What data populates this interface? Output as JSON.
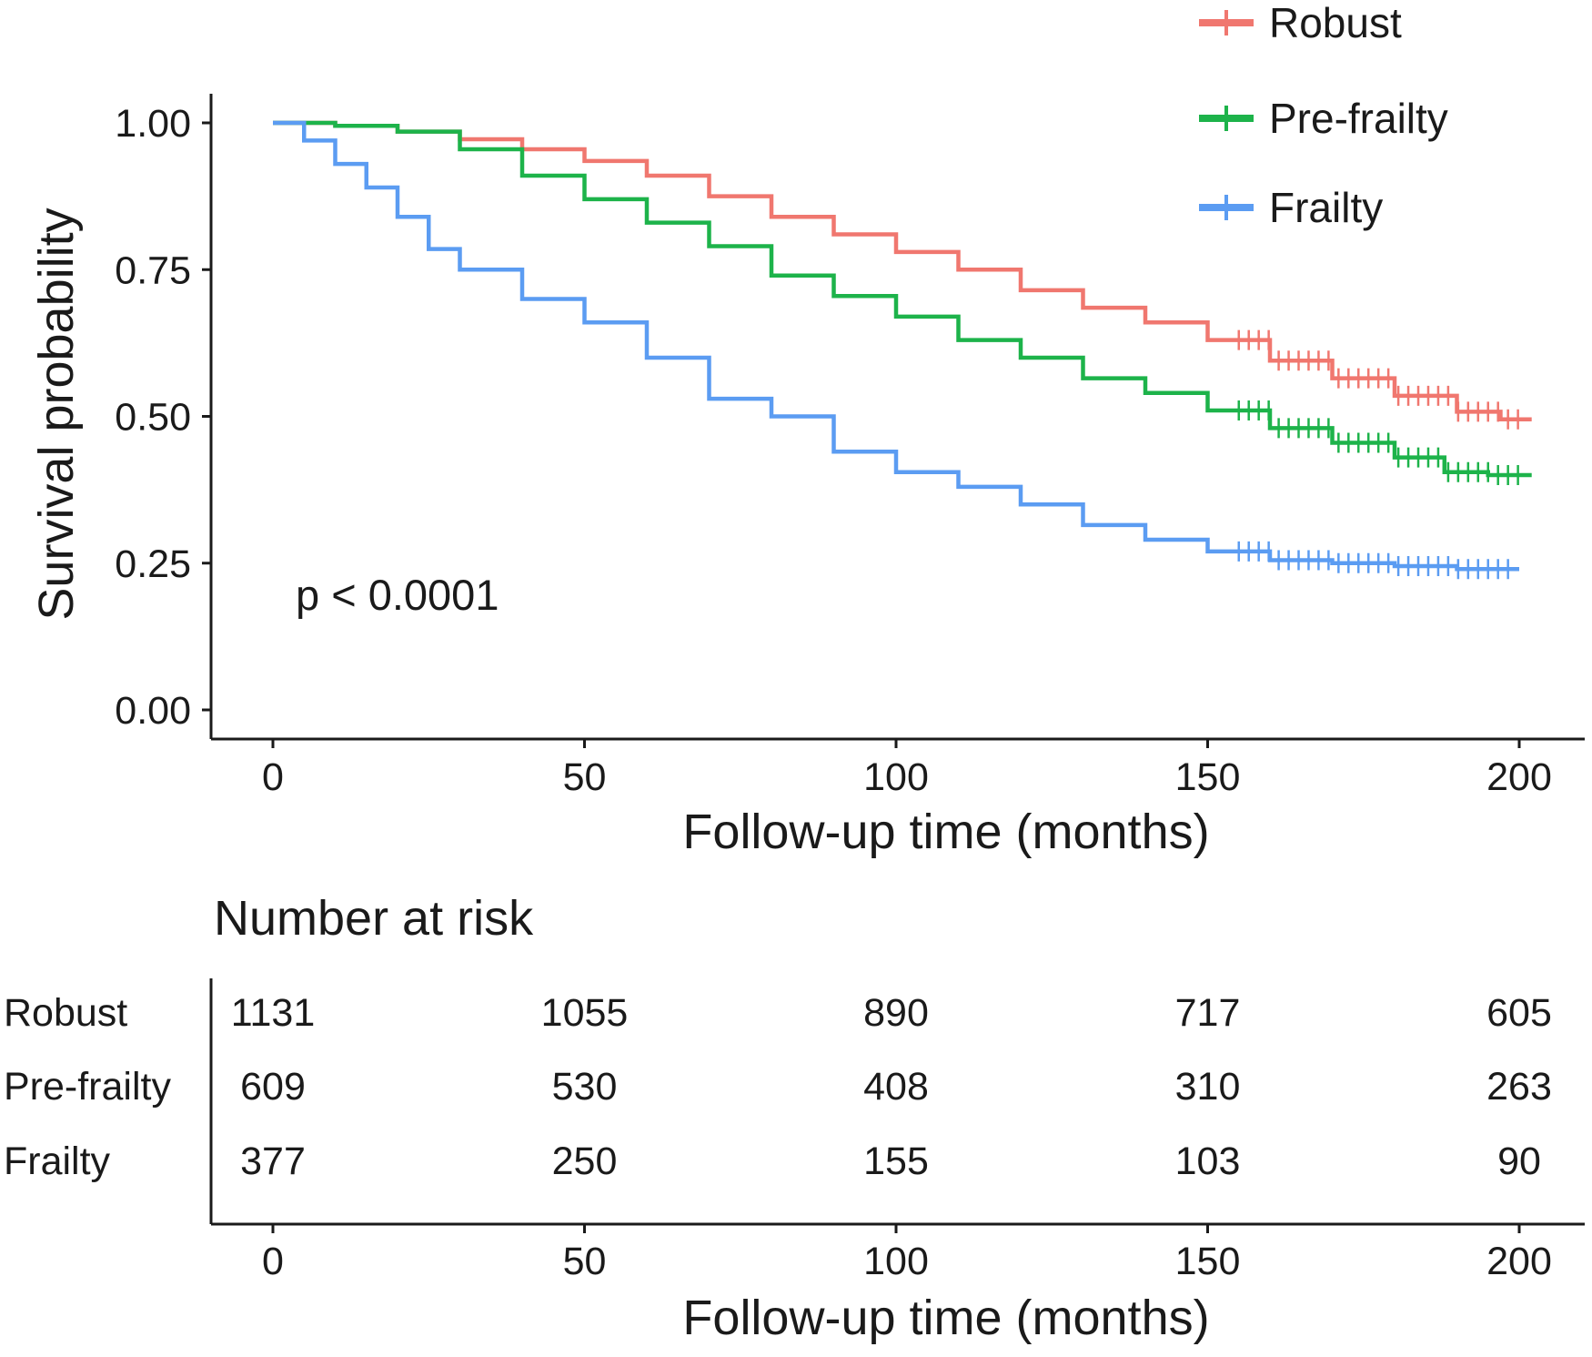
{
  "chart_data": {
    "type": "line",
    "subtype": "kaplan-meier",
    "title": "",
    "xlabel": "Follow-up time (months)",
    "ylabel": "Survival probability",
    "xlim": [
      0,
      200
    ],
    "ylim": [
      0,
      1
    ],
    "x_ticks": [
      0,
      50,
      100,
      150,
      200
    ],
    "y_ticks": [
      0.0,
      0.25,
      0.5,
      0.75,
      1.0
    ],
    "x_tick_labels": [
      "0",
      "50",
      "100",
      "150",
      "200"
    ],
    "y_tick_labels": [
      "0.00",
      "0.25",
      "0.50",
      "0.75",
      "1.00"
    ],
    "grid": false,
    "legend_position": "top-right",
    "annotation": "p < 0.0001",
    "series": [
      {
        "name": "Robust",
        "color": "#f0776f",
        "censor_from": 155,
        "points": [
          [
            0,
            1.0
          ],
          [
            10,
            0.995
          ],
          [
            20,
            0.985
          ],
          [
            30,
            0.972
          ],
          [
            40,
            0.955
          ],
          [
            50,
            0.935
          ],
          [
            60,
            0.91
          ],
          [
            70,
            0.875
          ],
          [
            80,
            0.84
          ],
          [
            90,
            0.81
          ],
          [
            100,
            0.78
          ],
          [
            110,
            0.75
          ],
          [
            120,
            0.715
          ],
          [
            130,
            0.685
          ],
          [
            140,
            0.66
          ],
          [
            150,
            0.63
          ],
          [
            160,
            0.595
          ],
          [
            170,
            0.565
          ],
          [
            180,
            0.535
          ],
          [
            190,
            0.508
          ],
          [
            197,
            0.495
          ],
          [
            202,
            0.495
          ]
        ]
      },
      {
        "name": "Pre-frailty",
        "color": "#1db34a",
        "censor_from": 155,
        "points": [
          [
            0,
            1.0
          ],
          [
            10,
            0.995
          ],
          [
            20,
            0.985
          ],
          [
            30,
            0.955
          ],
          [
            40,
            0.91
          ],
          [
            50,
            0.87
          ],
          [
            60,
            0.83
          ],
          [
            70,
            0.79
          ],
          [
            80,
            0.74
          ],
          [
            90,
            0.705
          ],
          [
            100,
            0.67
          ],
          [
            110,
            0.63
          ],
          [
            120,
            0.6
          ],
          [
            130,
            0.565
          ],
          [
            140,
            0.54
          ],
          [
            150,
            0.51
          ],
          [
            160,
            0.48
          ],
          [
            170,
            0.455
          ],
          [
            180,
            0.43
          ],
          [
            188,
            0.405
          ],
          [
            195,
            0.4
          ],
          [
            202,
            0.4
          ]
        ]
      },
      {
        "name": "Frailty",
        "color": "#5b9cf2",
        "censor_from": 155,
        "points": [
          [
            0,
            1.0
          ],
          [
            5,
            0.97
          ],
          [
            10,
            0.93
          ],
          [
            15,
            0.89
          ],
          [
            20,
            0.84
          ],
          [
            25,
            0.785
          ],
          [
            30,
            0.75
          ],
          [
            40,
            0.7
          ],
          [
            50,
            0.66
          ],
          [
            60,
            0.6
          ],
          [
            70,
            0.53
          ],
          [
            80,
            0.5
          ],
          [
            90,
            0.44
          ],
          [
            100,
            0.405
          ],
          [
            110,
            0.38
          ],
          [
            120,
            0.35
          ],
          [
            130,
            0.315
          ],
          [
            140,
            0.29
          ],
          [
            150,
            0.27
          ],
          [
            160,
            0.255
          ],
          [
            170,
            0.25
          ],
          [
            180,
            0.245
          ],
          [
            190,
            0.24
          ],
          [
            200,
            0.24
          ]
        ]
      }
    ],
    "risk_table": {
      "title": "Number at risk",
      "xlabel": "Follow-up time (months)",
      "times": [
        0,
        50,
        100,
        150,
        200
      ],
      "time_labels": [
        "0",
        "50",
        "100",
        "150",
        "200"
      ],
      "rows": [
        {
          "name": "Robust",
          "counts": [
            "1131",
            "1055",
            "890",
            "717",
            "605"
          ]
        },
        {
          "name": "Pre-frailty",
          "counts": [
            "609",
            "530",
            "408",
            "310",
            "263"
          ]
        },
        {
          "name": "Frailty",
          "counts": [
            "377",
            "250",
            "155",
            "103",
            "90"
          ]
        }
      ]
    }
  }
}
